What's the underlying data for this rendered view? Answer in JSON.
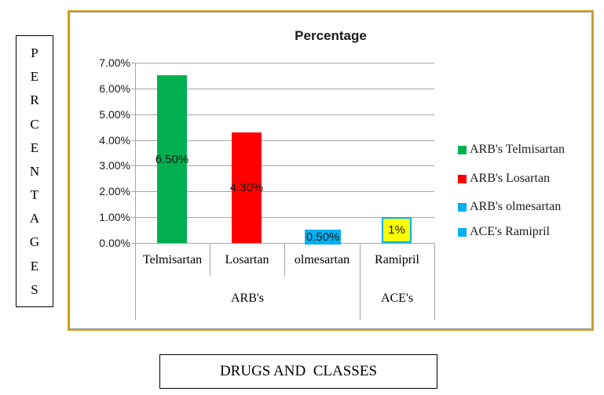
{
  "left_caption": {
    "text": "PERCENTAGES",
    "letters": [
      "P",
      "E",
      "R",
      "C",
      "E",
      "N",
      "T",
      "A",
      "G",
      "E",
      "S"
    ]
  },
  "bottom_caption": {
    "label": "DRUGS AND  CLASSES"
  },
  "chart_data": {
    "type": "bar",
    "title": "Percentage",
    "categories": [
      "Telmisartan",
      "Losartan",
      "olmesartan",
      "Ramipril"
    ],
    "group_labels": [
      "ARB's",
      "ACE's"
    ],
    "values": [
      6.5,
      4.3,
      0.5,
      1.0
    ],
    "data_labels": [
      "6.50%",
      "4.30%",
      "0.50%",
      "1%"
    ],
    "bar_colors": [
      "#00B050",
      "#FF0000",
      "#00B0F0",
      "#FFFF00"
    ],
    "ramipril_label_border": "#00B0F0",
    "y_ticks": [
      "7.00%",
      "6.00%",
      "5.00%",
      "4.00%",
      "3.00%",
      "2.00%",
      "1.00%",
      "0.00%"
    ],
    "ylim": [
      0,
      7
    ],
    "grid": true,
    "legend_position": "right",
    "legend": [
      {
        "label": "ARB's Telmisartan",
        "color": "#00B050"
      },
      {
        "label": "ARB's Losartan",
        "color": "#FF0000"
      },
      {
        "label": "ARB's olmesartan",
        "color": "#00B0F0"
      },
      {
        "label": "ACE's Ramipril",
        "color": "#00B0F0"
      }
    ]
  }
}
